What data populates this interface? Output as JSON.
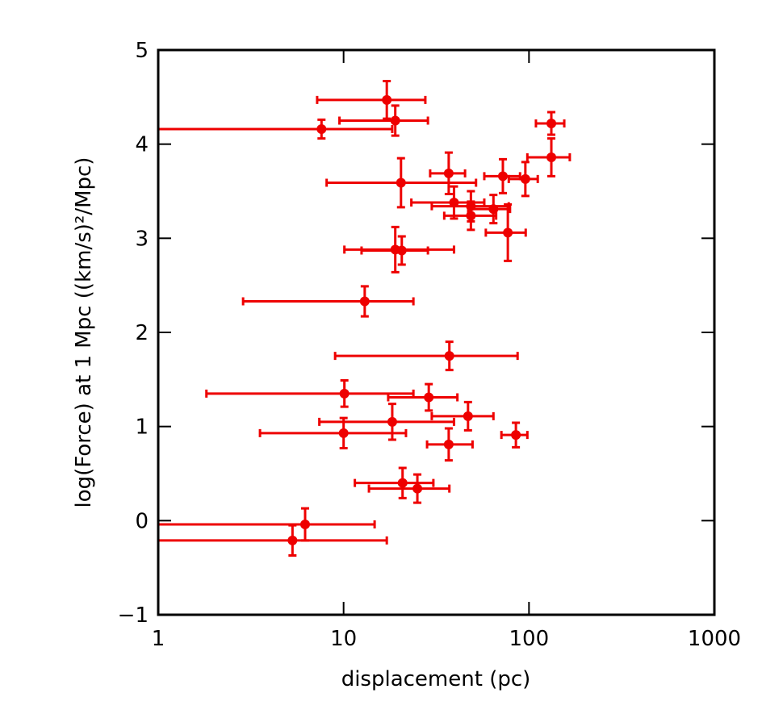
{
  "chart_data": {
    "type": "scatter",
    "x_label": "displacement (pc)",
    "y_label": "log(Force) at 1 Mpc ((km/s)²/Mpc)",
    "x_scale": "log",
    "xlim": [
      1,
      1000
    ],
    "xticks": [
      1,
      10,
      100,
      1000
    ],
    "ylim": [
      -1,
      5
    ],
    "yticks": [
      {
        "value": -1,
        "label": "−1"
      },
      0,
      1,
      2,
      3,
      4,
      5
    ],
    "series": [
      {
        "color": "#ee0000",
        "x": [
          17.1,
          19.0,
          7.6,
          132,
          132,
          20.4,
          36.9,
          72.3,
          95.6,
          39.4,
          48.6,
          48.6,
          64.3,
          76.9,
          19.0,
          20.6,
          13.0,
          37.2,
          10.1,
          28.8,
          46.9,
          18.3,
          10.0,
          85,
          36.9,
          20.8,
          25.0,
          6.2,
          5.3
        ],
        "x_low": [
          7.2,
          9.5,
          0.3,
          109,
          98,
          8.1,
          29.3,
          57.4,
          77.8,
          23.2,
          29.9,
          34.9,
          47,
          58.5,
          10.1,
          12.5,
          2.87,
          9.0,
          1.82,
          17.4,
          29.9,
          7.4,
          3.54,
          71,
          28.2,
          11.5,
          13.7,
          0.3,
          0.3
        ],
        "x_high": [
          27.6,
          28.5,
          18.3,
          155,
          166,
          51.8,
          45.2,
          89.5,
          111.5,
          57.4,
          77.8,
          66.5,
          79,
          96,
          39.4,
          28.5,
          23.8,
          86.8,
          23.8,
          41.1,
          64.3,
          39.4,
          21.7,
          98,
          49.6,
          30.5,
          37.2,
          14.7,
          17.1
        ],
        "values": [
          4.47,
          4.25,
          4.16,
          4.22,
          3.86,
          3.59,
          3.69,
          3.66,
          3.63,
          3.38,
          3.34,
          3.24,
          3.31,
          3.06,
          2.88,
          2.87,
          2.33,
          1.75,
          1.35,
          1.31,
          1.11,
          1.05,
          0.93,
          0.91,
          0.81,
          0.4,
          0.34,
          -0.04,
          -0.21
        ],
        "y_err": [
          0.2,
          0.16,
          0.1,
          0.12,
          0.2,
          0.26,
          0.22,
          0.18,
          0.18,
          0.17,
          0.16,
          0.15,
          0.15,
          0.3,
          0.24,
          0.15,
          0.16,
          0.15,
          0.14,
          0.14,
          0.15,
          0.19,
          0.16,
          0.13,
          0.17,
          0.16,
          0.15,
          0.17,
          0.16
        ]
      }
    ]
  }
}
